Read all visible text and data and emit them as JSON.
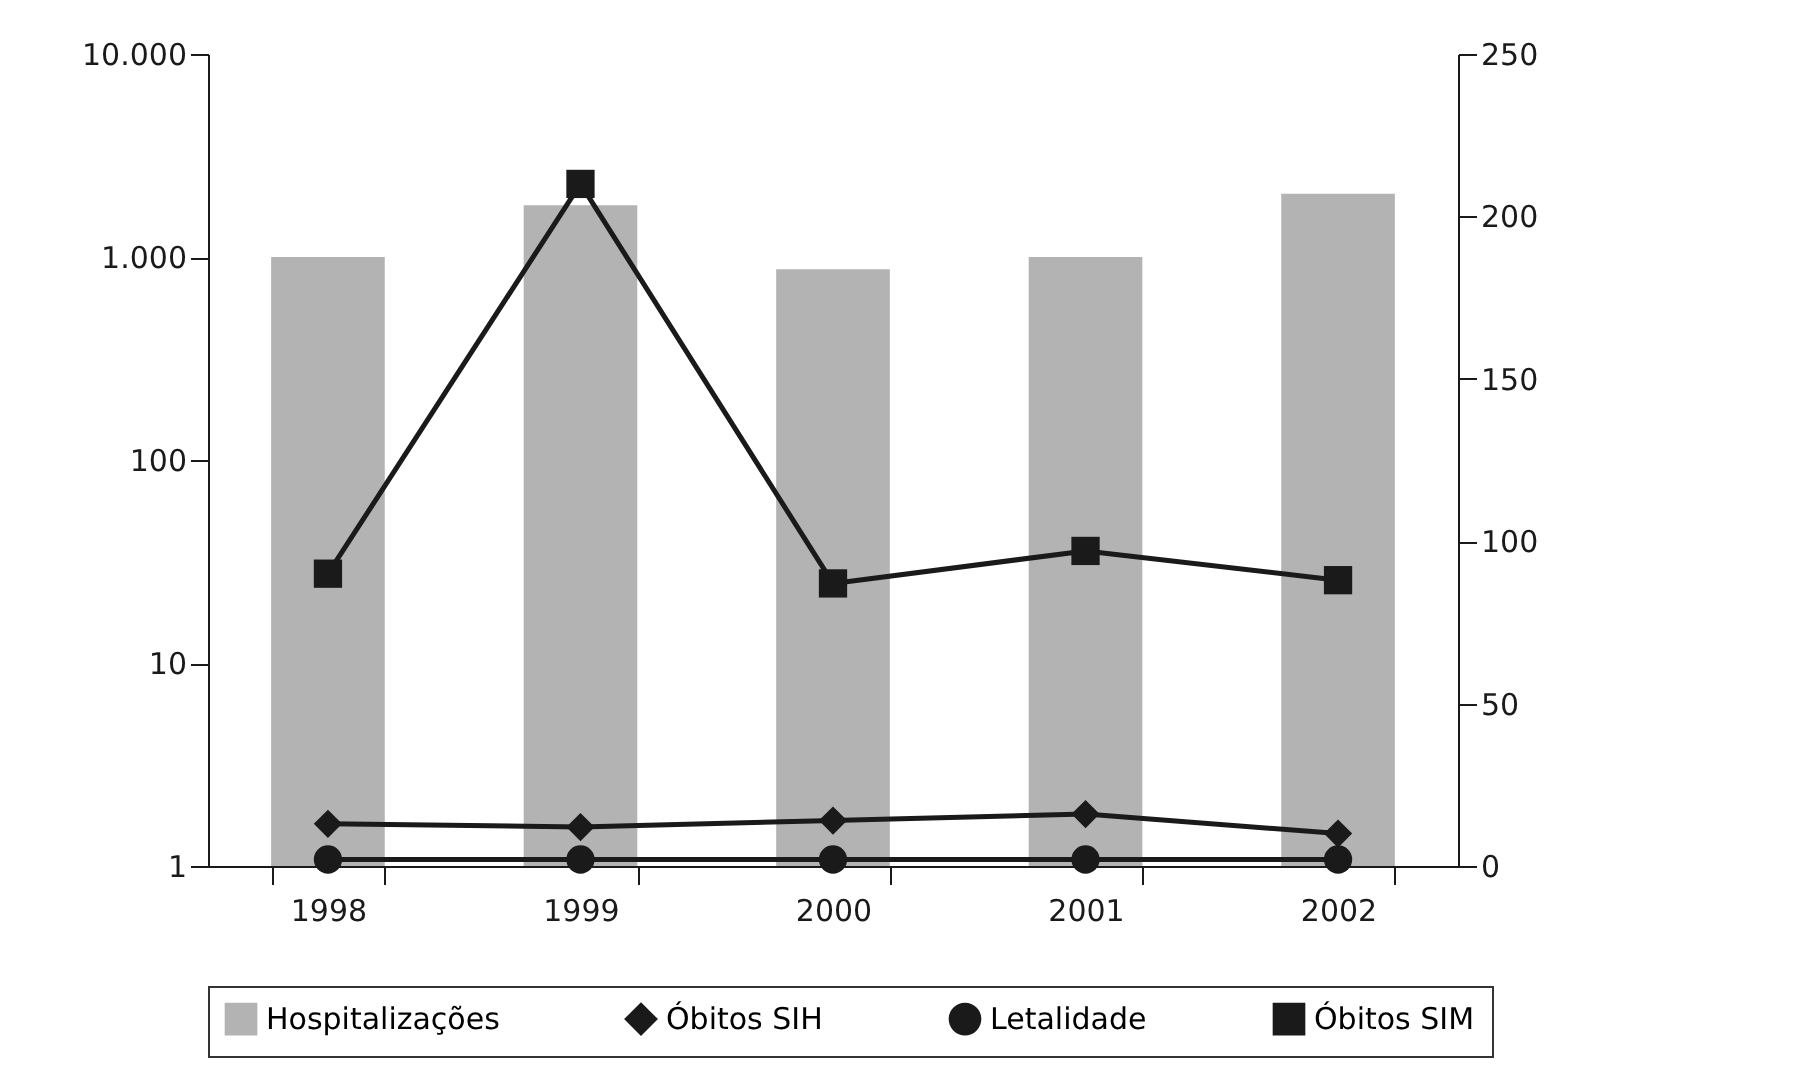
{
  "chart_data": {
    "type": "bar",
    "categories": [
      "1998",
      "1999",
      "2000",
      "2001",
      "2002"
    ],
    "series": [
      {
        "name": "Hospitalizações",
        "type": "bar",
        "color": "#b3b3b3",
        "values": [
          1000,
          1800,
          870,
          1000,
          2050
        ]
      },
      {
        "name": "Óbitos SIH",
        "type": "line",
        "axis": "y2",
        "marker": "diamond",
        "color": "#1a1a1a",
        "values": [
          13,
          12,
          14,
          16,
          10
        ]
      },
      {
        "name": "Letalidade",
        "type": "line",
        "axis": "y2",
        "marker": "circle",
        "color": "#1a1a1a",
        "values": [
          2,
          2,
          2,
          2,
          2
        ]
      },
      {
        "name": "Óbitos SIM",
        "type": "line",
        "axis": "y2",
        "marker": "square",
        "color": "#1a1a1a",
        "values": [
          90,
          210,
          87,
          97,
          88
        ]
      }
    ],
    "log": "y",
    "ylim": [
      1,
      10000
    ],
    "yticks": [
      1,
      10,
      100,
      {
        "value": 1000,
        "label": "1.000"
      },
      {
        "value": 10000,
        "label": "10.000"
      }
    ],
    "y2lim": [
      0,
      250
    ],
    "y2ticks": [
      0,
      50,
      100,
      150,
      200,
      250
    ],
    "grid": false,
    "legend": "bottom",
    "line_style": "solid"
  }
}
